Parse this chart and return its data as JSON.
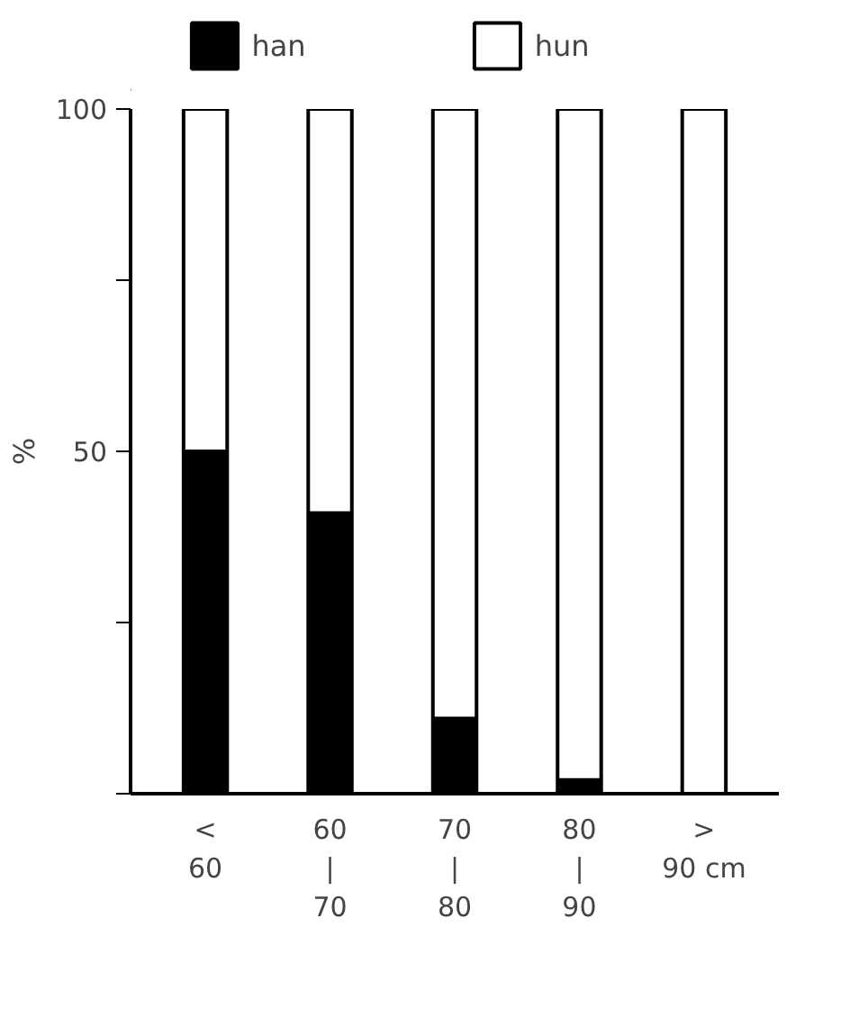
{
  "chart_data": {
    "type": "bar",
    "stacked": true,
    "ylabel": "%",
    "categories": [
      "<\n60",
      "60\n|\n70",
      "70\n|\n80",
      "80\n|\n90",
      ">\n90 cm"
    ],
    "series": [
      {
        "name": "han",
        "color": "#000000",
        "values": [
          50,
          41,
          11,
          2,
          0
        ]
      },
      {
        "name": "hun",
        "color": "#ffffff",
        "values": [
          50,
          59,
          89,
          98,
          100
        ]
      }
    ],
    "ylim": [
      0,
      100
    ],
    "yticks": [
      {
        "value": 0,
        "label": null
      },
      {
        "value": 25,
        "label": null
      },
      50,
      {
        "value": 75,
        "label": null
      },
      100
    ],
    "grid": false,
    "legend": "top"
  }
}
